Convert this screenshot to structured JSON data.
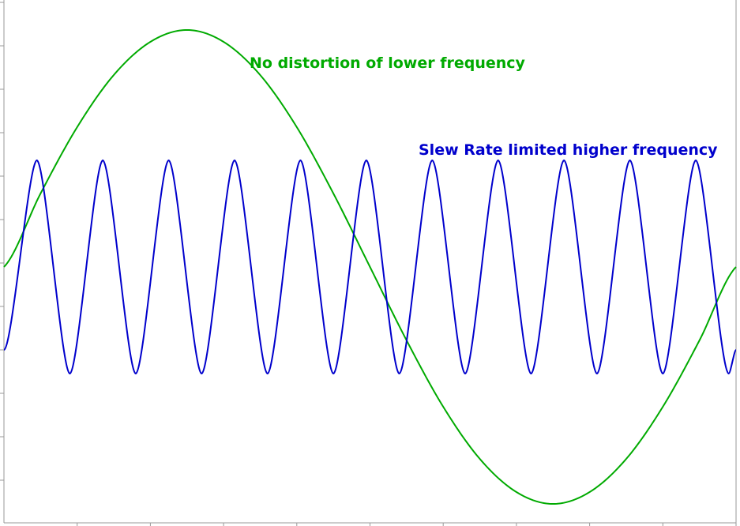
{
  "chart_data": {
    "type": "line",
    "title": "",
    "xlabel": "",
    "ylabel": "",
    "xlim": [
      0,
      1
    ],
    "ylim": [
      -1.12,
      1.12
    ],
    "grid": false,
    "series": [
      {
        "color": "#00aa00",
        "x": [
          0.0,
          0.05,
          0.1,
          0.15,
          0.2,
          0.25,
          0.3,
          0.35,
          0.4,
          0.45,
          0.5,
          0.55,
          0.6,
          0.65,
          0.7,
          0.75,
          0.8,
          0.85,
          0.9,
          0.95,
          1.0
        ],
        "y": [
          0.0,
          0.31,
          0.59,
          0.81,
          0.95,
          1.0,
          0.95,
          0.81,
          0.59,
          0.31,
          0.0,
          -0.31,
          -0.59,
          -0.81,
          -0.95,
          -1.0,
          -0.95,
          -0.81,
          -0.59,
          -0.31,
          0.0
        ]
      },
      {
        "color": "#0000cc",
        "x": [
          0.0,
          0.045,
          0.09,
          0.135,
          0.18,
          0.225,
          0.27,
          0.315,
          0.36,
          0.405,
          0.45,
          0.495,
          0.54,
          0.585,
          0.63,
          0.675,
          0.72,
          0.765,
          0.81,
          0.855,
          0.9,
          0.945,
          0.99,
          1.0
        ],
        "y": [
          -0.35,
          0.45,
          -0.45,
          0.45,
          -0.45,
          0.45,
          -0.45,
          0.45,
          -0.45,
          0.45,
          -0.45,
          0.45,
          -0.45,
          0.45,
          -0.45,
          0.45,
          -0.45,
          0.45,
          -0.45,
          0.45,
          -0.45,
          0.45,
          -0.45,
          -0.35
        ]
      }
    ],
    "annotations": [
      {
        "text": "No distortion of lower frequency",
        "color": "#00aa00"
      },
      {
        "text": "Slew Rate limited higher frequency",
        "color": "#0000cc"
      }
    ]
  }
}
